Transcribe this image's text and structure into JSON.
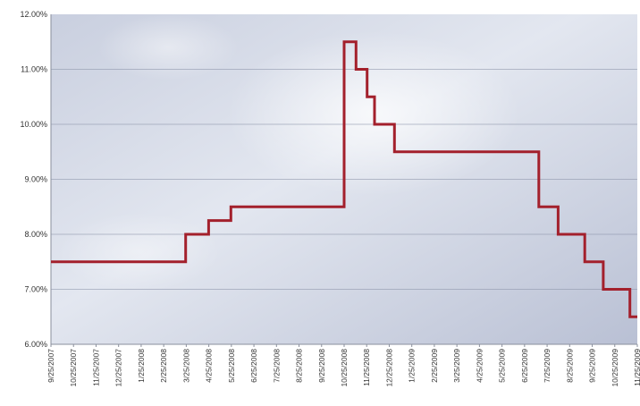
{
  "chart_data": {
    "type": "line",
    "step": true,
    "y_tick_labels": [
      "12.00%",
      "11.00%",
      "10.00%",
      "9.00%",
      "8.00%",
      "7.00%",
      "6.00%"
    ],
    "y_ticks": [
      12,
      11,
      10,
      9,
      8,
      7,
      6
    ],
    "x_tick_labels": [
      "9/25/2007",
      "10/25/2007",
      "11/25/2007",
      "12/25/2007",
      "1/25/2008",
      "2/25/2008",
      "3/25/2008",
      "4/25/2008",
      "5/25/2008",
      "6/25/2008",
      "7/25/2008",
      "8/25/2008",
      "9/25/2008",
      "10/25/2008",
      "11/25/2008",
      "12/25/2008",
      "1/25/2009",
      "2/25/2009",
      "3/25/2009",
      "4/25/2009",
      "5/25/2009",
      "6/25/2009",
      "7/25/2009",
      "8/25/2009",
      "9/25/2009",
      "10/25/2009",
      "11/25/2009"
    ],
    "xlim": [
      "2007-09-25",
      "2009-11-25"
    ],
    "ylim": [
      6,
      12
    ],
    "grid": true,
    "series": [
      {
        "color": "#a3202c",
        "points": [
          [
            "2007-09-25",
            7.5
          ],
          [
            "2008-03-25",
            8.0
          ],
          [
            "2008-04-25",
            8.25
          ],
          [
            "2008-05-25",
            8.5
          ],
          [
            "2008-10-25",
            11.5
          ],
          [
            "2008-11-10",
            11.0
          ],
          [
            "2008-11-25",
            10.5
          ],
          [
            "2008-12-05",
            10.0
          ],
          [
            "2009-01-01",
            9.5
          ],
          [
            "2009-07-15",
            8.5
          ],
          [
            "2009-08-10",
            8.0
          ],
          [
            "2009-09-15",
            7.5
          ],
          [
            "2009-10-10",
            7.0
          ],
          [
            "2009-11-15",
            6.5
          ],
          [
            "2009-11-25",
            6.5
          ]
        ]
      }
    ]
  }
}
